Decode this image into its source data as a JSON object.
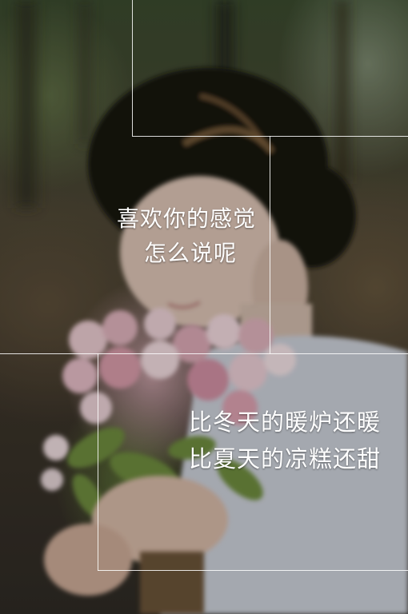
{
  "caption_top": {
    "line1": "喜欢你的感觉",
    "line2": "怎么说呢"
  },
  "caption_bottom": {
    "line1": "比冬天的暖炉还暖",
    "line2": "比夏天的凉糕还甜"
  },
  "colors": {
    "text": "#ffffff",
    "frame": "#ffffff"
  }
}
